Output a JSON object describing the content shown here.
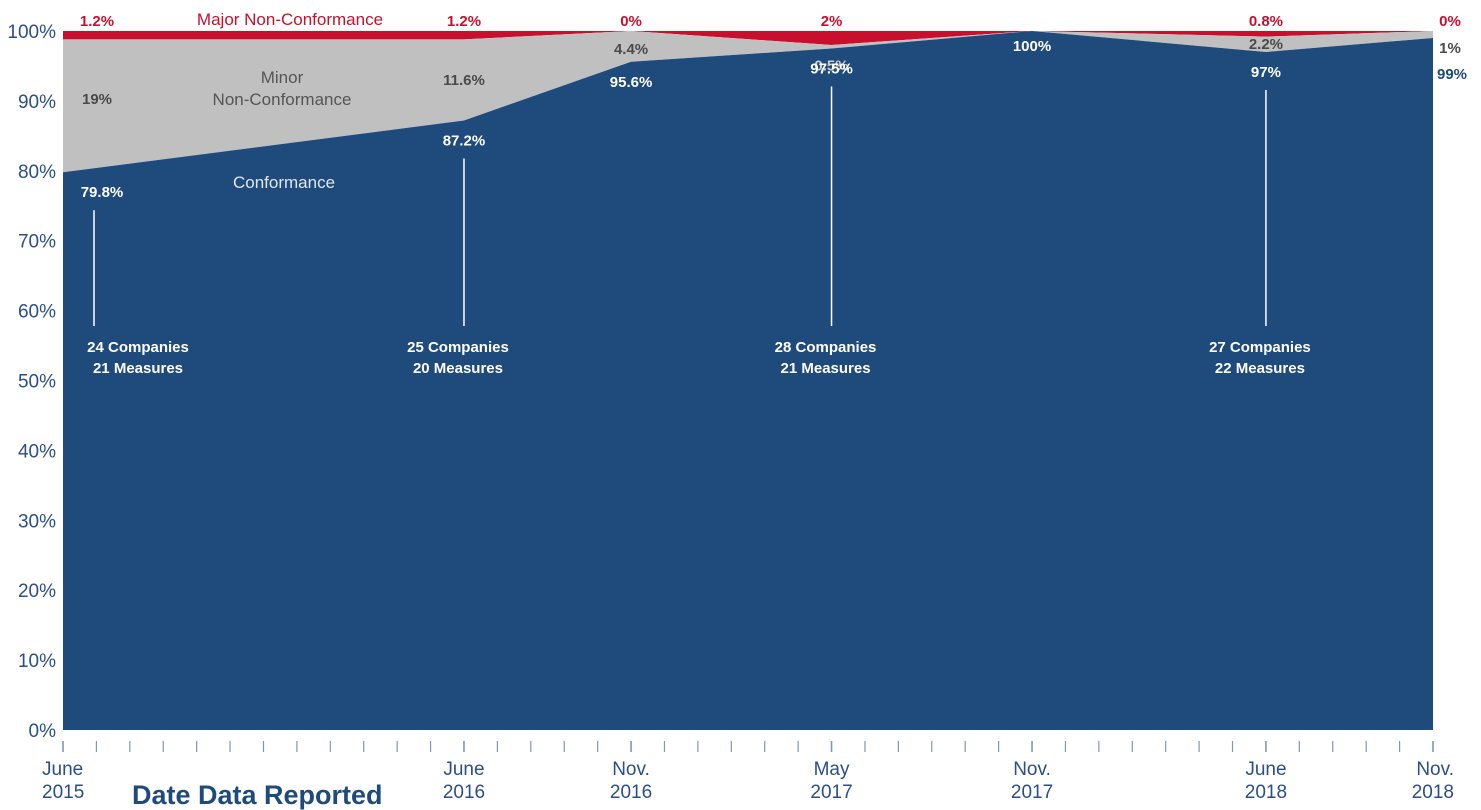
{
  "chart_data": {
    "type": "area",
    "title": "",
    "xlabel": "Date Data Reported",
    "ylabel": "",
    "ylim": [
      0,
      100
    ],
    "y_ticks": [
      "0%",
      "10%",
      "20%",
      "30%",
      "40%",
      "50%",
      "60%",
      "70%",
      "80%",
      "90%",
      "100%"
    ],
    "x": [
      "2015-06",
      "2016-06",
      "2016-11",
      "2017-05",
      "2017-11",
      "2018-06",
      "2018-11"
    ],
    "x_tick_labels": [
      {
        "line1": "June",
        "line2": "2015"
      },
      {
        "line1": "June",
        "line2": "2016"
      },
      {
        "line1": "Nov.",
        "line2": "2016"
      },
      {
        "line1": "May",
        "line2": "2017"
      },
      {
        "line1": "Nov.",
        "line2": "2017"
      },
      {
        "line1": "June",
        "line2": "2018"
      },
      {
        "line1": "Nov.",
        "line2": "2018"
      }
    ],
    "stacked": true,
    "series": [
      {
        "name": "Conformance",
        "color": "#1f4a7c",
        "values": [
          79.8,
          87.2,
          95.6,
          97.5,
          100,
          97,
          99
        ],
        "labels": [
          "79.8%",
          "87.2%",
          "95.6%",
          "97.5%",
          "100%",
          "97%",
          "99%"
        ]
      },
      {
        "name": "Minor Non-Conformance",
        "color": "#c0c0c0",
        "values": [
          19,
          11.6,
          4.4,
          0.5,
          0,
          2.2,
          1
        ],
        "labels": [
          "19%",
          "11.6%",
          "4.4%",
          "0.5%",
          "",
          "2.2%",
          "1%"
        ]
      },
      {
        "name": "Major Non-Conformance",
        "color": "#c8102e",
        "values": [
          1.2,
          1.2,
          0,
          2,
          0,
          0.8,
          0
        ],
        "labels": [
          "1.2%",
          "1.2%",
          "0%",
          "2%",
          "",
          "0.8%",
          "0%"
        ]
      }
    ],
    "series_name_lines": {
      "major": [
        "Major Non-Conformance"
      ],
      "minor": [
        "Minor",
        "Non-Conformance"
      ],
      "conformance": [
        "Conformance"
      ]
    },
    "annotations": [
      {
        "x": "2015-06",
        "lines": [
          "24 Companies",
          "21 Measures"
        ]
      },
      {
        "x": "2016-06",
        "lines": [
          "25 Companies",
          "20 Measures"
        ]
      },
      {
        "x": "2017-05",
        "lines": [
          "28 Companies",
          "21 Measures"
        ]
      },
      {
        "x": "2018-06",
        "lines": [
          "27 Companies",
          "22 Measures"
        ]
      }
    ]
  }
}
